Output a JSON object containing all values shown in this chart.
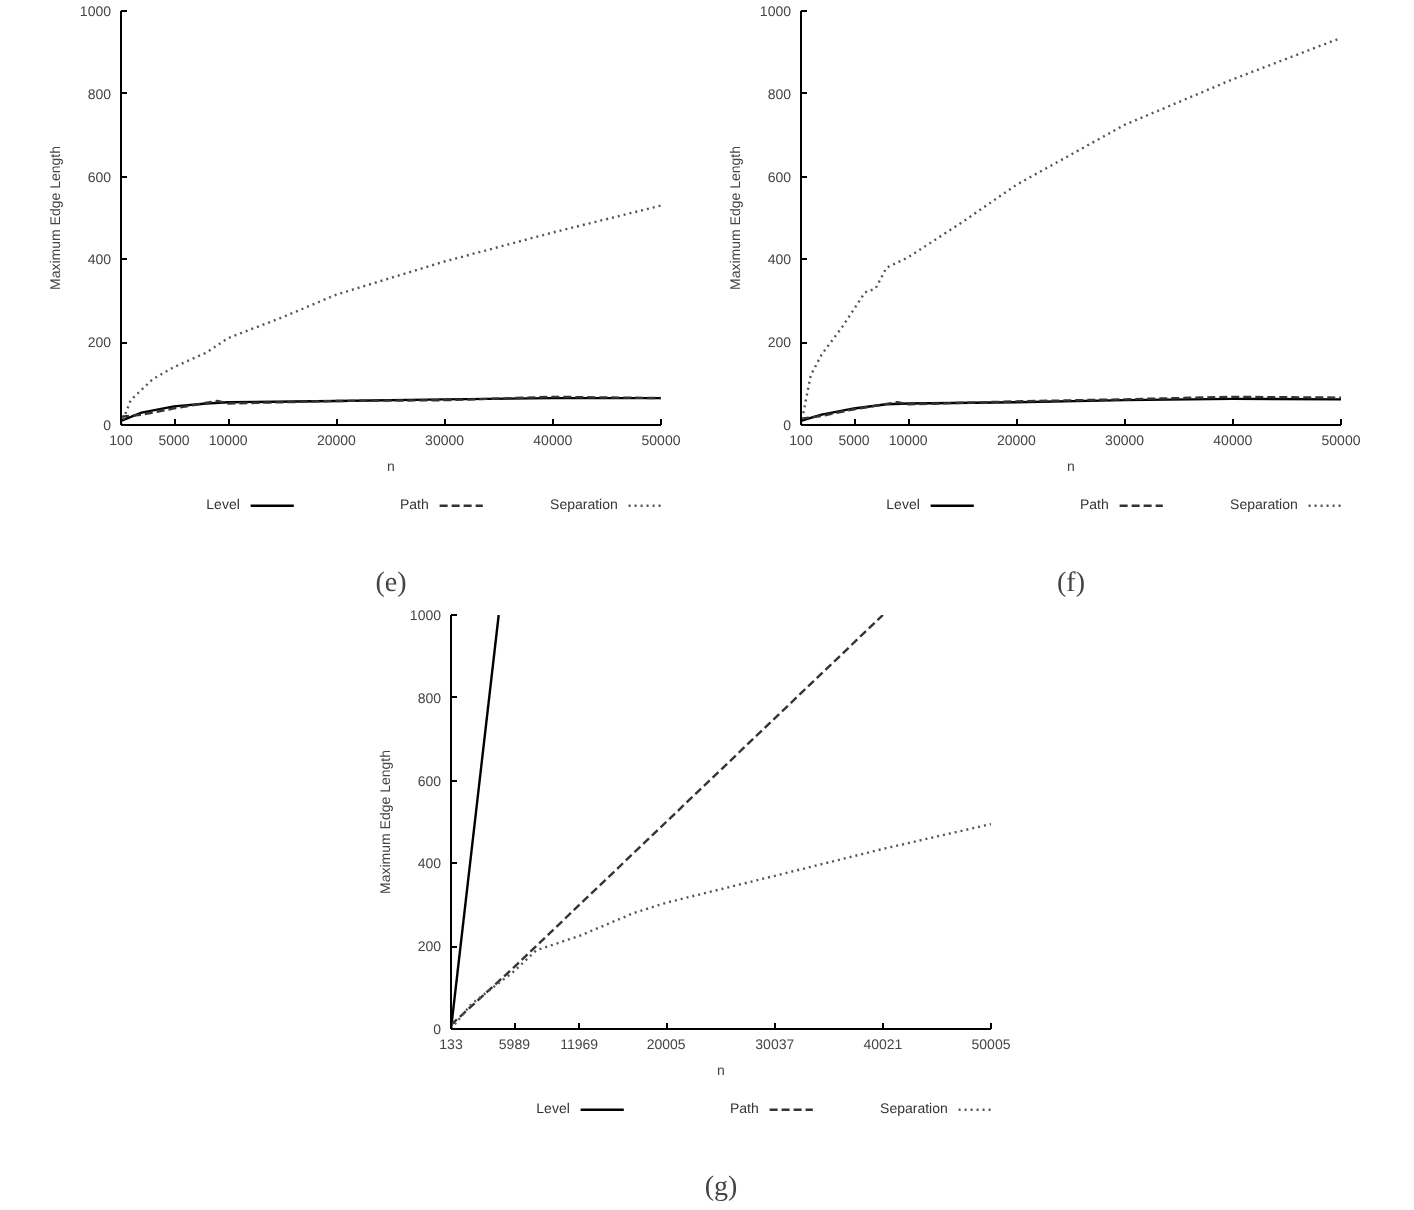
{
  "chart_data": [
    {
      "type": "line",
      "xlabel": "n",
      "ylabel": "Maximum Edge Length",
      "annotations": [
        "(e)"
      ],
      "xlim": [
        100,
        50000
      ],
      "ylim": [
        0,
        1000
      ],
      "xticks": [
        100,
        5000,
        10000,
        20000,
        30000,
        40000,
        50000
      ],
      "yticks": [
        0,
        200,
        400,
        600,
        800,
        1000
      ],
      "grid": false,
      "legend": "bottom",
      "marker": "none",
      "series": [
        {
          "name": "Level",
          "color": "#000000",
          "line_style": "solid",
          "x": [
            100,
            2000,
            5000,
            8000,
            10000,
            20000,
            30000,
            40000,
            50000
          ],
          "values": [
            10,
            30,
            45,
            52,
            55,
            58,
            62,
            65,
            65
          ]
        },
        {
          "name": "Path",
          "color": "#333333",
          "line_style": "dashed",
          "x": [
            100,
            2000,
            5000,
            9000,
            10000,
            20000,
            30000,
            40000,
            50000
          ],
          "values": [
            20,
            25,
            40,
            58,
            52,
            58,
            60,
            68,
            65
          ]
        },
        {
          "name": "Separation",
          "color": "#555555",
          "line_style": "dotted",
          "x": [
            100,
            1000,
            3000,
            5000,
            8000,
            10000,
            15000,
            20000,
            30000,
            40000,
            50000
          ],
          "values": [
            0,
            60,
            110,
            140,
            175,
            210,
            260,
            315,
            395,
            465,
            530
          ]
        }
      ]
    },
    {
      "type": "line",
      "xlabel": "n",
      "ylabel": "Maximum Edge Length",
      "annotations": [
        "(f)"
      ],
      "xlim": [
        100,
        50000
      ],
      "ylim": [
        0,
        1000
      ],
      "xticks": [
        100,
        5000,
        10000,
        20000,
        30000,
        40000,
        50000
      ],
      "yticks": [
        0,
        200,
        400,
        600,
        800,
        1000
      ],
      "grid": false,
      "legend": "bottom",
      "marker": "none",
      "series": [
        {
          "name": "Level",
          "color": "#000000",
          "line_style": "solid",
          "x": [
            100,
            2000,
            5000,
            8000,
            10000,
            20000,
            30000,
            40000,
            50000
          ],
          "values": [
            10,
            25,
            40,
            50,
            52,
            55,
            60,
            63,
            62
          ]
        },
        {
          "name": "Path",
          "color": "#333333",
          "line_style": "dashed",
          "x": [
            100,
            2000,
            5000,
            9000,
            10000,
            20000,
            30000,
            40000,
            50000
          ],
          "values": [
            15,
            22,
            38,
            55,
            50,
            57,
            62,
            68,
            66
          ]
        },
        {
          "name": "Separation",
          "color": "#555555",
          "line_style": "dotted",
          "x": [
            100,
            1000,
            2000,
            4000,
            6000,
            7000,
            8000,
            10000,
            15000,
            20000,
            30000,
            40000,
            50000
          ],
          "values": [
            0,
            120,
            170,
            240,
            320,
            330,
            380,
            405,
            490,
            580,
            725,
            835,
            935
          ]
        }
      ]
    },
    {
      "type": "line",
      "xlabel": "n",
      "ylabel": "Maximum Edge Length",
      "annotations": [
        "(g)"
      ],
      "xlim": [
        133,
        50005
      ],
      "ylim": [
        0,
        1000
      ],
      "xticks": [
        133,
        5989,
        11969,
        20005,
        30037,
        40021,
        50005
      ],
      "yticks": [
        0,
        200,
        400,
        600,
        800,
        1000
      ],
      "grid": false,
      "legend": "bottom",
      "marker": "none",
      "series": [
        {
          "name": "Level",
          "color": "#000000",
          "line_style": "solid",
          "x": [
            133,
            4538
          ],
          "values": [
            0,
            1000
          ]
        },
        {
          "name": "Path",
          "color": "#333333",
          "line_style": "dashed",
          "x": [
            133,
            5989,
            20005,
            40021
          ],
          "values": [
            10,
            150,
            500,
            1000
          ]
        },
        {
          "name": "Separation",
          "color": "#555555",
          "line_style": "dotted",
          "x": [
            133,
            2000,
            5989,
            8000,
            12000,
            17000,
            20005,
            30037,
            40021,
            50005
          ],
          "values": [
            0,
            60,
            140,
            190,
            225,
            280,
            305,
            370,
            435,
            495
          ]
        }
      ]
    }
  ]
}
